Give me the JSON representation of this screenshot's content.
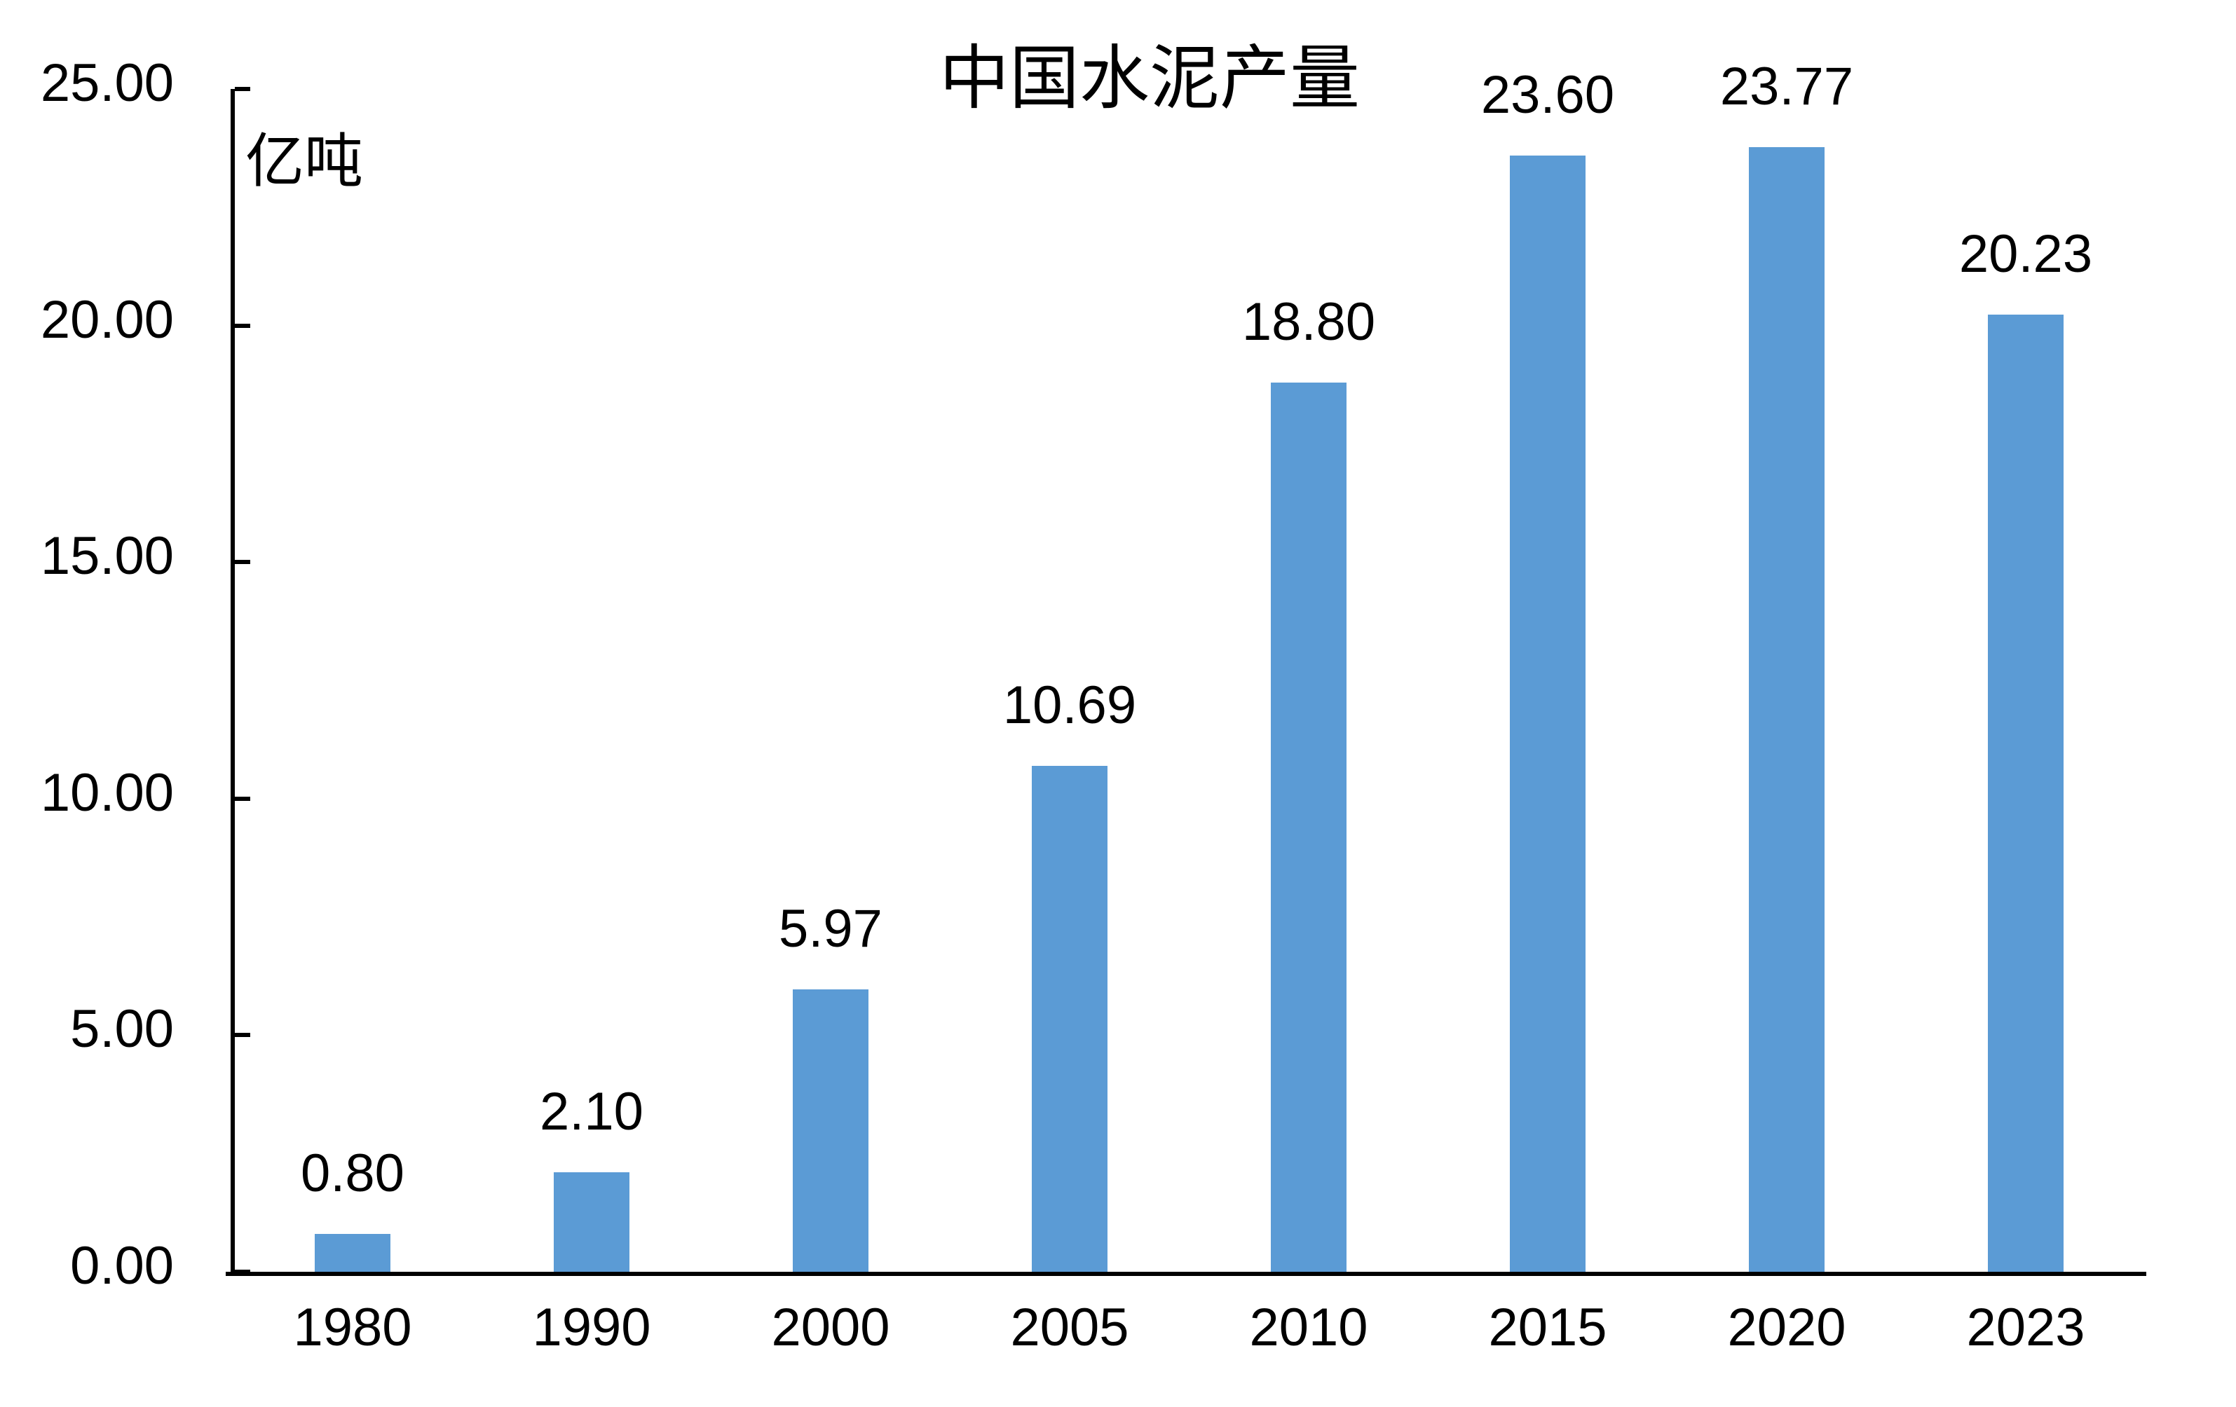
{
  "chart_data": {
    "type": "bar",
    "title": "中国水泥产量",
    "unit_label": "亿吨",
    "categories": [
      "1980",
      "1990",
      "2000",
      "2005",
      "2010",
      "2015",
      "2020",
      "2023"
    ],
    "values": [
      0.8,
      2.1,
      5.97,
      10.69,
      18.8,
      23.6,
      23.77,
      20.23
    ],
    "data_labels": [
      "0.80",
      "2.10",
      "5.97",
      "10.69",
      "18.80",
      "23.60",
      "23.77",
      "20.23"
    ],
    "xlabel": "",
    "ylabel": "亿吨",
    "ylim": [
      0,
      25
    ],
    "y_tick_values": [
      0,
      5,
      10,
      15,
      20,
      25
    ],
    "y_tick_labels": [
      "0.00",
      "5.00",
      "10.00",
      "15.00",
      "20.00",
      "25.00"
    ],
    "grid": false,
    "legend": "none",
    "bar_color": "#5B9BD5",
    "axis_color": "#000000",
    "text_color": "#000000",
    "background_color": "#FFFFFF"
  }
}
